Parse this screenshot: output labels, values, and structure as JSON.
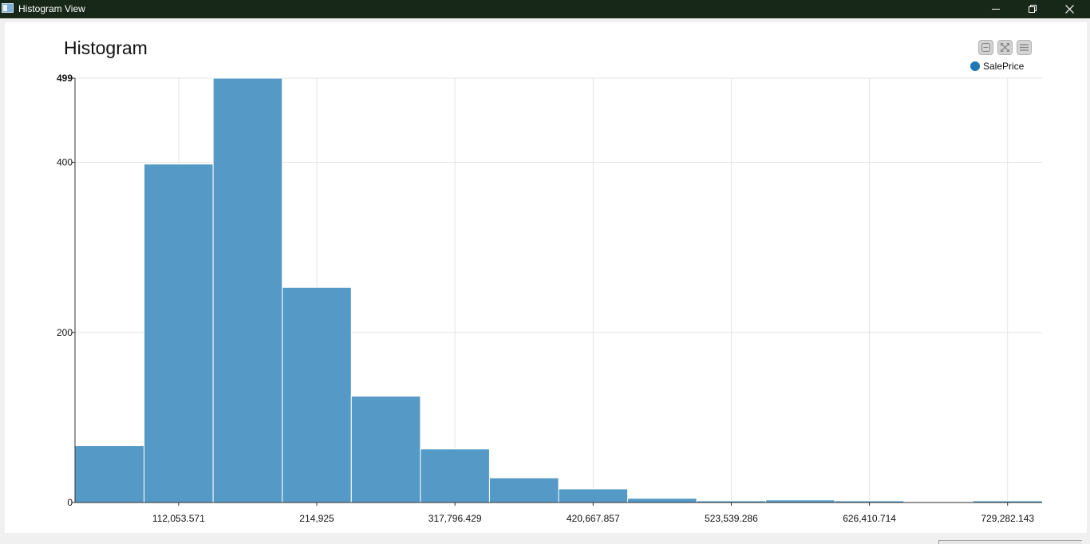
{
  "window": {
    "title": "Histogram View",
    "controls": {
      "minimize_icon": "minimize-icon",
      "restore_icon": "restore-icon",
      "close_icon": "close-icon"
    }
  },
  "toolbar": {
    "buttons": [
      {
        "icon": "collapse-icon"
      },
      {
        "icon": "fullscreen-icon"
      },
      {
        "icon": "menu-icon"
      }
    ]
  },
  "colors": {
    "bar": "#5599c7",
    "series": "#1f77b4",
    "grid": "#e5e5e5",
    "titlebar": "#182818"
  },
  "chart_data": {
    "type": "bar",
    "title": "Histogram",
    "series": [
      {
        "name": "SalePrice",
        "values": [
          67,
          398,
          501,
          253,
          125,
          63,
          29,
          16,
          5,
          2,
          3,
          2,
          1,
          2
        ]
      }
    ],
    "x_tick_labels": [
      "112,053.571",
      "214,925",
      "317,796.429",
      "420,667.857",
      "523,539.286",
      "626,410.714",
      "729,282.143"
    ],
    "x_tick_positions": [
      112053.571,
      214925,
      317796.429,
      420667.857,
      523539.286,
      626410.714,
      729282.143
    ],
    "y_ticks": [
      0,
      200,
      400,
      499
    ],
    "ylim": [
      0,
      499
    ],
    "bin_start": 34900,
    "bin_width": 51435.714,
    "bin_count": 14,
    "grid": true,
    "legend_position": "top-right"
  }
}
